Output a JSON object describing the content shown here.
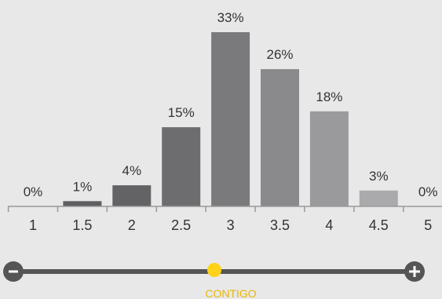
{
  "chart_data": {
    "type": "bar",
    "categories": [
      "1",
      "1.5",
      "2",
      "2.5",
      "3",
      "3.5",
      "4",
      "4.5",
      "5"
    ],
    "values": [
      0,
      1,
      4,
      15,
      33,
      26,
      18,
      3,
      0
    ],
    "value_labels": [
      "0%",
      "1%",
      "4%",
      "15%",
      "33%",
      "26%",
      "18%",
      "3%",
      "0%"
    ],
    "bar_colors": [
      "#5f5f62",
      "#5f5f62",
      "#636366",
      "#6d6d70",
      "#7a7a7d",
      "#8a8a8d",
      "#9a9a9c",
      "#aaaaac",
      "#b0b0b0"
    ],
    "title": "",
    "xlabel": "",
    "ylabel": "",
    "ylim": [
      0,
      33
    ],
    "grid": false
  },
  "slider": {
    "caption": "CONTIGO",
    "value_fraction": 0.5,
    "minus_icon": "minus-icon",
    "plus_icon": "plus-icon",
    "track_color": "#555555",
    "thumb_color": "#ffd21a",
    "caption_color": "#e8b800"
  }
}
